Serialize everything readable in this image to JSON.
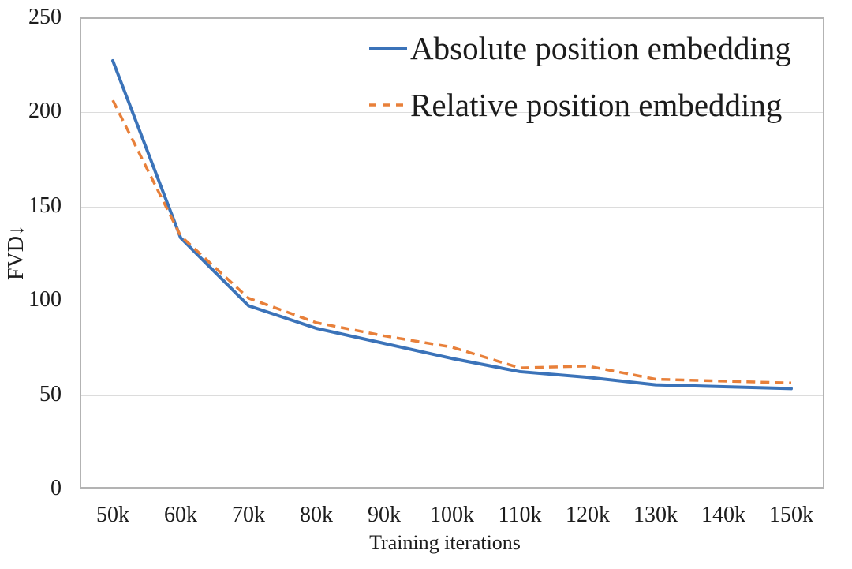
{
  "chart": {
    "title": "",
    "ylabel": "FVD↓",
    "xlabel": "Training iterations"
  },
  "chart_data": {
    "type": "line",
    "categories": [
      "50k",
      "60k",
      "70k",
      "80k",
      "90k",
      "100k",
      "110k",
      "120k",
      "130k",
      "140k",
      "150k"
    ],
    "series": [
      {
        "name": "Absolute position embedding",
        "values": [
          227,
          133,
          97,
          85,
          77,
          69,
          62,
          59,
          55,
          54,
          53
        ],
        "color": "#3b73b9",
        "dash": false
      },
      {
        "name": "Relative position embedding",
        "values": [
          206,
          134,
          101,
          88,
          81,
          75,
          64,
          65,
          58,
          57,
          56
        ],
        "color": "#e8803a",
        "dash": true
      }
    ],
    "xlabel": "Training iterations",
    "ylabel": "FVD↓",
    "ylim": [
      0,
      250
    ],
    "yticks": [
      0,
      50,
      100,
      150,
      200,
      250
    ],
    "grid": "horizontal",
    "legend_position": "top-right-inside"
  }
}
